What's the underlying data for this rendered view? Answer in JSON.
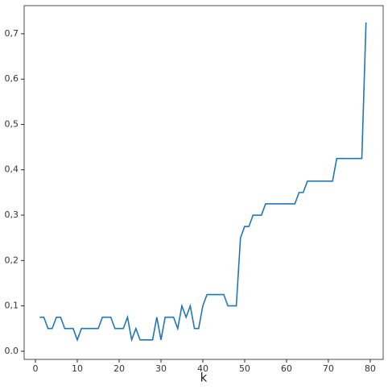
{
  "chart_data": {
    "type": "line",
    "x_label": "k",
    "x": [
      1,
      2,
      3,
      4,
      5,
      6,
      7,
      8,
      9,
      10,
      11,
      12,
      13,
      14,
      15,
      16,
      17,
      18,
      19,
      20,
      21,
      22,
      23,
      24,
      25,
      26,
      27,
      28,
      29,
      30,
      31,
      32,
      33,
      34,
      35,
      36,
      37,
      38,
      39,
      40,
      41,
      42,
      43,
      44,
      45,
      46,
      47,
      48,
      49,
      50,
      51,
      52,
      53,
      54,
      55,
      56,
      57,
      58,
      59,
      60,
      61,
      62,
      63,
      64,
      65,
      66,
      67,
      68,
      69,
      70,
      71,
      72,
      73,
      74,
      75,
      76,
      77,
      78,
      79
    ],
    "series": [
      {
        "color": "#1f77b4",
        "values": [
          0.075,
          0.075,
          0.05,
          0.05,
          0.075,
          0.075,
          0.05,
          0.05,
          0.05,
          0.025,
          0.05,
          0.05,
          0.05,
          0.05,
          0.05,
          0.075,
          0.075,
          0.075,
          0.05,
          0.05,
          0.05,
          0.075,
          0.025,
          0.05,
          0.025,
          0.025,
          0.025,
          0.025,
          0.075,
          0.025,
          0.075,
          0.075,
          0.075,
          0.05,
          0.1,
          0.075,
          0.1,
          0.05,
          0.05,
          0.1,
          0.125,
          0.125,
          0.125,
          0.125,
          0.125,
          0.1,
          0.1,
          0.1,
          0.25,
          0.275,
          0.275,
          0.3,
          0.3,
          0.3,
          0.325,
          0.325,
          0.325,
          0.325,
          0.325,
          0.325,
          0.325,
          0.325,
          0.35,
          0.35,
          0.375,
          0.375,
          0.375,
          0.375,
          0.375,
          0.375,
          0.375,
          0.425,
          0.425,
          0.425,
          0.425,
          0.425,
          0.425,
          0.425,
          0.725
        ]
      }
    ],
    "xlim": [
      -2.7,
      83.1
    ],
    "ylim": [
      -0.018,
      0.762
    ],
    "xticks": [
      0,
      10,
      20,
      30,
      40,
      50,
      60,
      70,
      80
    ],
    "yticks": [
      {
        "value": 0,
        "label": "0.0"
      },
      {
        "value": 0.1,
        "label": "0,1"
      },
      {
        "value": 0.2,
        "label": "0,2"
      },
      {
        "value": 0.3,
        "label": "0,3"
      },
      {
        "value": 0.4,
        "label": "0,4"
      },
      {
        "value": 0.5,
        "label": "0,5"
      },
      {
        "value": 0.6,
        "label": "0,6"
      },
      {
        "value": 0.7,
        "label": "0,7"
      }
    ]
  }
}
